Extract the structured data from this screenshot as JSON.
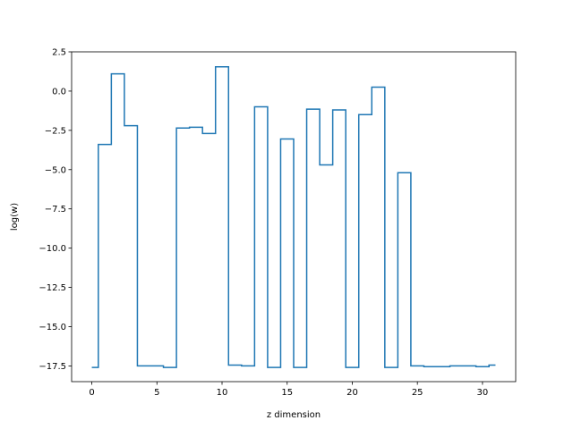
{
  "chart_data": {
    "type": "line",
    "drawstyle": "steps-mid",
    "title": "",
    "xlabel": "z dimension",
    "ylabel": "log(w)",
    "xlim": [
      -1.55,
      32.55
    ],
    "ylim": [
      -18.5,
      2.5
    ],
    "xticks": [
      0,
      5,
      10,
      15,
      20,
      25,
      30
    ],
    "xtick_labels": [
      "0",
      "5",
      "10",
      "15",
      "20",
      "25",
      "30"
    ],
    "yticks": [
      2.5,
      0.0,
      -2.5,
      -5.0,
      -7.5,
      -10.0,
      -12.5,
      -15.0,
      -17.5
    ],
    "ytick_labels": [
      "2.5",
      "0.0",
      "−2.5",
      "−5.0",
      "−7.5",
      "−10.0",
      "−12.5",
      "−15.0",
      "−17.5"
    ],
    "grid": false,
    "series": [
      {
        "color": "#1f77b4",
        "x": [
          0,
          1,
          2,
          3,
          4,
          5,
          6,
          7,
          8,
          9,
          10,
          11,
          12,
          13,
          14,
          15,
          16,
          17,
          18,
          19,
          20,
          21,
          22,
          23,
          24,
          25,
          26,
          27,
          28,
          29,
          30,
          31
        ],
        "y": [
          -17.6,
          -3.4,
          1.1,
          -2.2,
          -17.5,
          -17.5,
          -17.6,
          -2.35,
          -2.3,
          -2.7,
          1.55,
          -17.45,
          -17.5,
          -1.0,
          -17.6,
          -3.05,
          -17.6,
          -1.15,
          -4.7,
          -1.2,
          -17.6,
          -1.5,
          0.25,
          -17.6,
          -5.2,
          -17.5,
          -17.55,
          -17.55,
          -17.5,
          -17.5,
          -17.55,
          -17.45
        ]
      }
    ]
  }
}
